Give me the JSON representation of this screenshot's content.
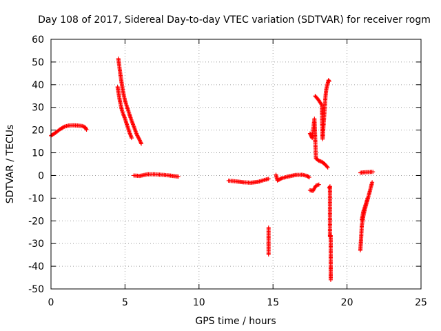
{
  "chart_data": {
    "type": "scatter",
    "title": "Day 108 of 2017, Sidereal Day-to-day VTEC variation (SDTVAR) for receiver rogm",
    "xlabel": "GPS time / hours",
    "ylabel": "SDTVAR / TECUs",
    "xlim": [
      0,
      25
    ],
    "ylim": [
      -50,
      60
    ],
    "xticks": [
      0,
      5,
      10,
      15,
      20,
      25
    ],
    "yticks": [
      -50,
      -40,
      -30,
      -20,
      -10,
      0,
      10,
      20,
      30,
      40,
      50,
      60
    ],
    "grid": true,
    "marker": "plus",
    "color": "#ff0000",
    "arcs": [
      {
        "points": [
          [
            0.0,
            17.5
          ],
          [
            0.3,
            18.8
          ],
          [
            0.6,
            20.3
          ],
          [
            0.9,
            21.5
          ],
          [
            1.2,
            22.0
          ],
          [
            1.5,
            22.1
          ],
          [
            1.8,
            22.0
          ],
          [
            2.1,
            21.8
          ],
          [
            2.3,
            21.3
          ],
          [
            2.4,
            20.2
          ]
        ]
      },
      {
        "points": [
          [
            4.55,
            51.5
          ],
          [
            4.7,
            44.0
          ],
          [
            4.85,
            37.5
          ],
          [
            5.0,
            33.0
          ],
          [
            5.2,
            29.0
          ],
          [
            5.4,
            25.0
          ],
          [
            5.6,
            21.5
          ],
          [
            5.8,
            18.0
          ],
          [
            6.0,
            15.5
          ],
          [
            6.1,
            14.0
          ]
        ]
      },
      {
        "points": [
          [
            4.5,
            39.0
          ],
          [
            4.65,
            33.0
          ],
          [
            4.8,
            28.5
          ],
          [
            5.0,
            25.0
          ],
          [
            5.15,
            22.0
          ],
          [
            5.3,
            19.0
          ],
          [
            5.45,
            16.5
          ]
        ]
      },
      {
        "points": [
          [
            5.6,
            0.0
          ],
          [
            6.0,
            -0.2
          ],
          [
            6.5,
            0.5
          ],
          [
            7.0,
            0.5
          ],
          [
            7.5,
            0.3
          ],
          [
            8.0,
            0.0
          ],
          [
            8.6,
            -0.5
          ]
        ]
      },
      {
        "points": [
          [
            12.0,
            -2.3
          ],
          [
            12.5,
            -2.6
          ],
          [
            13.0,
            -3.0
          ],
          [
            13.5,
            -3.2
          ],
          [
            14.0,
            -2.8
          ],
          [
            14.4,
            -2.0
          ],
          [
            14.7,
            -1.5
          ]
        ]
      },
      {
        "points": [
          [
            14.7,
            -23.0
          ],
          [
            14.7,
            -34.8
          ]
        ]
      },
      {
        "points": [
          [
            15.2,
            0.3
          ],
          [
            15.3,
            -2.2
          ],
          [
            15.6,
            -1.2
          ],
          [
            16.0,
            -0.5
          ],
          [
            16.5,
            0.2
          ],
          [
            17.0,
            0.3
          ],
          [
            17.3,
            -0.2
          ],
          [
            17.45,
            -0.8
          ]
        ]
      },
      {
        "points": [
          [
            17.5,
            18.5
          ],
          [
            17.65,
            16.5
          ],
          [
            17.8,
            25.0
          ],
          [
            17.9,
            7.5
          ],
          [
            18.1,
            6.5
          ],
          [
            18.3,
            6.0
          ],
          [
            18.5,
            5.0
          ],
          [
            18.7,
            3.5
          ]
        ]
      },
      {
        "points": [
          [
            17.5,
            -6.5
          ],
          [
            17.7,
            -6.8
          ],
          [
            17.9,
            -4.5
          ],
          [
            18.1,
            -4.0
          ]
        ]
      },
      {
        "points": [
          [
            17.85,
            35.0
          ],
          [
            18.05,
            33.5
          ],
          [
            18.3,
            31.0
          ],
          [
            18.35,
            16.0
          ],
          [
            18.55,
            35.0
          ],
          [
            18.6,
            38.0
          ],
          [
            18.75,
            42.0
          ],
          [
            18.8,
            41.5
          ]
        ]
      },
      {
        "points": [
          [
            18.8,
            -5.5
          ],
          [
            18.85,
            -4.8
          ],
          [
            18.85,
            -27.0
          ],
          [
            18.9,
            -26.5
          ],
          [
            18.9,
            -40.0
          ],
          [
            18.9,
            -43.0
          ],
          [
            18.9,
            -46.0
          ]
        ]
      },
      {
        "points": [
          [
            20.9,
            1.2
          ],
          [
            21.2,
            1.4
          ],
          [
            21.5,
            1.5
          ],
          [
            21.75,
            1.6
          ]
        ]
      },
      {
        "points": [
          [
            20.9,
            -33.0
          ],
          [
            20.95,
            -28.0
          ],
          [
            21.0,
            -22.0
          ],
          [
            21.1,
            -18.0
          ],
          [
            21.2,
            -15.0
          ],
          [
            21.35,
            -11.5
          ],
          [
            21.5,
            -8.0
          ],
          [
            21.6,
            -5.5
          ],
          [
            21.7,
            -3.0
          ]
        ]
      },
      {
        "points": [
          [
            21.0,
            -19.5
          ],
          [
            21.1,
            -16.0
          ],
          [
            21.25,
            -13.0
          ],
          [
            21.4,
            -10.0
          ]
        ]
      }
    ]
  }
}
